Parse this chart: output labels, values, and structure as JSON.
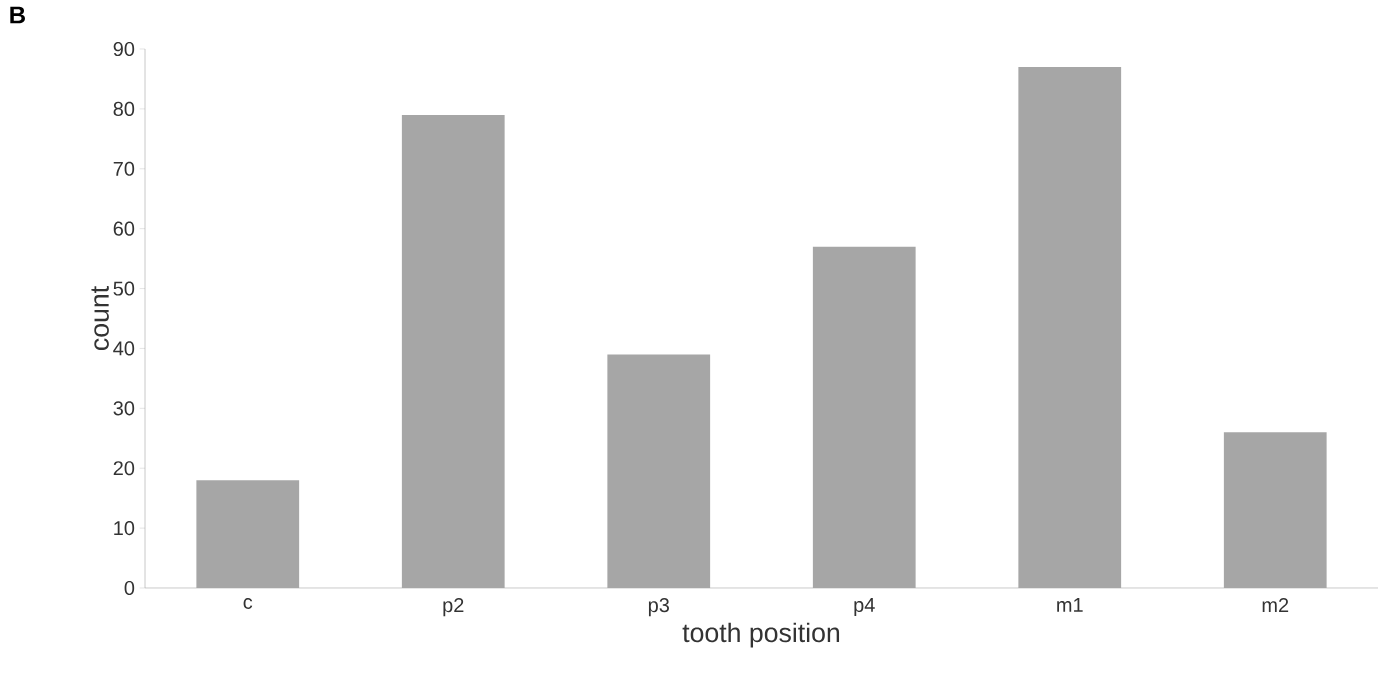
{
  "chart_data": {
    "type": "bar",
    "xlabel": "tooth position",
    "ylabel": "count",
    "annotations": [
      "B"
    ],
    "categories": [
      "c",
      "p2",
      "p3",
      "p4",
      "m1",
      "m2"
    ],
    "values": [
      18,
      79,
      39,
      57,
      87,
      26
    ],
    "color": "#a6a6a6",
    "ylim": [
      0,
      90
    ],
    "yticks": [
      0,
      10,
      20,
      30,
      40,
      50,
      60,
      70,
      80,
      90
    ],
    "grid": false
  }
}
